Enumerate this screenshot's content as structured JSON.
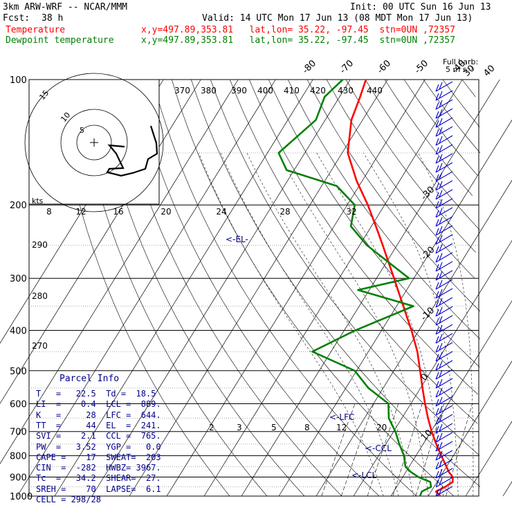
{
  "header": {
    "model": "3km ARW-WRF -- NCAR/MMM",
    "init": "Init: 00 UTC Sun 16 Jun 13",
    "fcst_label": "Fcst:",
    "fcst_value": "38 h",
    "valid": "Valid: 14 UTC Mon 17 Jun 13 (08 MDT Mon 17 Jun 13)",
    "temp_label": "Temperature",
    "dew_label": "Dewpoint temperature",
    "temp_loc": "x,y=497.89,353.81   lat,lon= 35.22, -97.45  stn=0UN ,72357",
    "dew_loc": "x,y=497.89,353.81   lat,lon= 35.22, -97.45  stn=0UN ,72357",
    "barb_legend_1": "Full barb:",
    "barb_legend_2": "5 m s⁻¹"
  },
  "colors": {
    "temperature": "#ff0000",
    "dewpoint": "#008000",
    "parcel_text": "#00008b",
    "barb": "#0000cd"
  },
  "parcel_info": {
    "title": "Parcel Info",
    "rows": [
      "T   =   22.5  Td =  18.5",
      "LI  =    0.4  LCL =  889.",
      "K   =     28  LFC =  644.",
      "TT  =     44  EL  =  241.",
      "SVI =    2.1  CCL =  765.",
      "PW  =   3.52  YGP =   0.0",
      "CAPE =    17  SWEAT=  203",
      "CIN  =  -282  HWBZ= 3967.",
      "Tc  =   34.2  SHEAR=  27.",
      "SREH =    70  LAPSE=  6.1",
      "CELL = 298/28"
    ]
  },
  "chart_data": {
    "type": "line",
    "chart_kind": "Skew-T log-P sounding",
    "y_axis": {
      "unit": "hPa",
      "ticks": [
        "100",
        "200",
        "300",
        "400",
        "500",
        "600",
        "700",
        "800",
        "900",
        "1000"
      ],
      "scale": "log",
      "range": [
        1000,
        100
      ]
    },
    "isotherm_labels_top": [
      "-80",
      "-70",
      "-60",
      "-50",
      "-40"
    ],
    "isotherm_labels_right": [
      "-30",
      "-20",
      "-10",
      "0",
      "10",
      "20",
      "30",
      "40"
    ],
    "theta_labels": [
      "370",
      "380",
      "390",
      "400",
      "410",
      "420",
      "430",
      "440"
    ],
    "theta_labels_left": [
      "290",
      "280",
      "270"
    ],
    "mixing_ratio_labels_low": [
      "2",
      "3",
      "5",
      "8",
      "12",
      "20"
    ],
    "hodograph_speed_labels": [
      "8",
      "12",
      "16",
      "20",
      "24",
      "28",
      "32"
    ],
    "hodograph_kts_label": "kts",
    "hodograph_ring_labels": [
      "5",
      "10",
      "15"
    ],
    "level_markers": [
      {
        "label": "<-EL-",
        "p": 241
      },
      {
        "label": "<-LFC",
        "p": 644
      },
      {
        "label": "<-CCL",
        "p": 765
      },
      {
        "label": "<-LCL",
        "p": 889
      }
    ],
    "series": [
      {
        "name": "Temperature",
        "points": [
          [
            1000,
            23.2
          ],
          [
            975,
            21.3
          ],
          [
            950,
            23.0
          ],
          [
            925,
            24.2
          ],
          [
            900,
            23.4
          ],
          [
            875,
            21.5
          ],
          [
            850,
            20.0
          ],
          [
            800,
            16.8
          ],
          [
            750,
            13.5
          ],
          [
            700,
            10.2
          ],
          [
            650,
            7.0
          ],
          [
            600,
            3.8
          ],
          [
            550,
            0.5
          ],
          [
            500,
            -3.0
          ],
          [
            450,
            -6.9
          ],
          [
            400,
            -12.0
          ],
          [
            350,
            -18.2
          ],
          [
            300,
            -25.3
          ],
          [
            250,
            -33.8
          ],
          [
            225,
            -38.8
          ],
          [
            200,
            -44.5
          ],
          [
            175,
            -51.5
          ],
          [
            150,
            -58.5
          ],
          [
            125,
            -63.0
          ],
          [
            110,
            -64.5
          ],
          [
            100,
            -65.8
          ]
        ]
      },
      {
        "name": "Dewpoint temperature",
        "points": [
          [
            1000,
            17.8
          ],
          [
            975,
            17.5
          ],
          [
            950,
            19.2
          ],
          [
            925,
            18.2
          ],
          [
            900,
            14.2
          ],
          [
            875,
            11.3
          ],
          [
            850,
            9.0
          ],
          [
            800,
            6.8
          ],
          [
            750,
            3.6
          ],
          [
            700,
            0.5
          ],
          [
            650,
            -3.5
          ],
          [
            600,
            -6.0
          ],
          [
            550,
            -14.0
          ],
          [
            500,
            -20.5
          ],
          [
            450,
            -35.0
          ],
          [
            400,
            -27.0
          ],
          [
            350,
            -15.5
          ],
          [
            320,
            -33.0
          ],
          [
            300,
            -21.3
          ],
          [
            250,
            -38.0
          ],
          [
            225,
            -45.5
          ],
          [
            200,
            -48.0
          ],
          [
            180,
            -56.0
          ],
          [
            165,
            -72.0
          ],
          [
            150,
            -77.0
          ],
          [
            125,
            -72.5
          ],
          [
            110,
            -74.0
          ],
          [
            100,
            -72.0
          ]
        ]
      }
    ],
    "grid": true
  }
}
